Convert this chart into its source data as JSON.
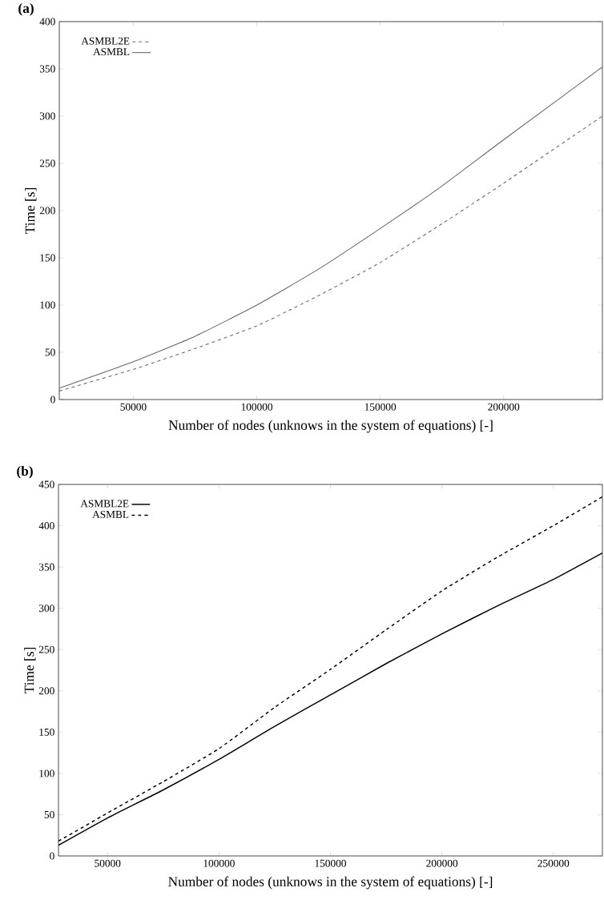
{
  "chart_data": [
    {
      "type": "line",
      "title": "(a)",
      "xlabel": "Number of nodes (unknows in the system of equations) [-]",
      "ylabel": "Time [s]",
      "xlim": [
        20000,
        240000
      ],
      "ylim": [
        0,
        400
      ],
      "xticks": [
        50000,
        100000,
        150000,
        200000
      ],
      "yticks": [
        0,
        50,
        100,
        150,
        200,
        250,
        300,
        350,
        400
      ],
      "legend": "top left",
      "x": [
        20000,
        50000,
        75000,
        100000,
        125000,
        150000,
        175000,
        200000,
        240000
      ],
      "series": [
        {
          "name": "ASMBL2E",
          "color": "#666666",
          "line_style": "dashed",
          "values": [
            9,
            32,
            54,
            78,
            110,
            145,
            186,
            229,
            300
          ]
        },
        {
          "name": "ASMBL",
          "color": "#666666",
          "line_style": "solid",
          "values": [
            12,
            40,
            67,
            100,
            138,
            181,
            226,
            275,
            352
          ]
        }
      ]
    },
    {
      "type": "line",
      "title": "(b)",
      "xlabel": "Number of nodes (unknows in the system of equations) [-]",
      "ylabel": "Time [s]",
      "xlim": [
        28000,
        272000
      ],
      "ylim": [
        0,
        450
      ],
      "xticks": [
        50000,
        100000,
        150000,
        200000,
        250000
      ],
      "yticks": [
        0,
        50,
        100,
        150,
        200,
        250,
        300,
        350,
        400,
        450
      ],
      "legend": "top left",
      "x": [
        28000,
        50000,
        75000,
        100000,
        125000,
        150000,
        175000,
        200000,
        225000,
        250000,
        272000
      ],
      "series": [
        {
          "name": "ASMBL2E",
          "color": "#000000",
          "line_style": "solid",
          "values": [
            13,
            46,
            80,
            117,
            157,
            195,
            233,
            269,
            303,
            335,
            367
          ]
        },
        {
          "name": "ASMBL",
          "color": "#000000",
          "line_style": "dashed",
          "values": [
            18,
            52,
            90,
            130,
            180,
            226,
            274,
            321,
            362,
            400,
            435
          ]
        }
      ]
    }
  ]
}
